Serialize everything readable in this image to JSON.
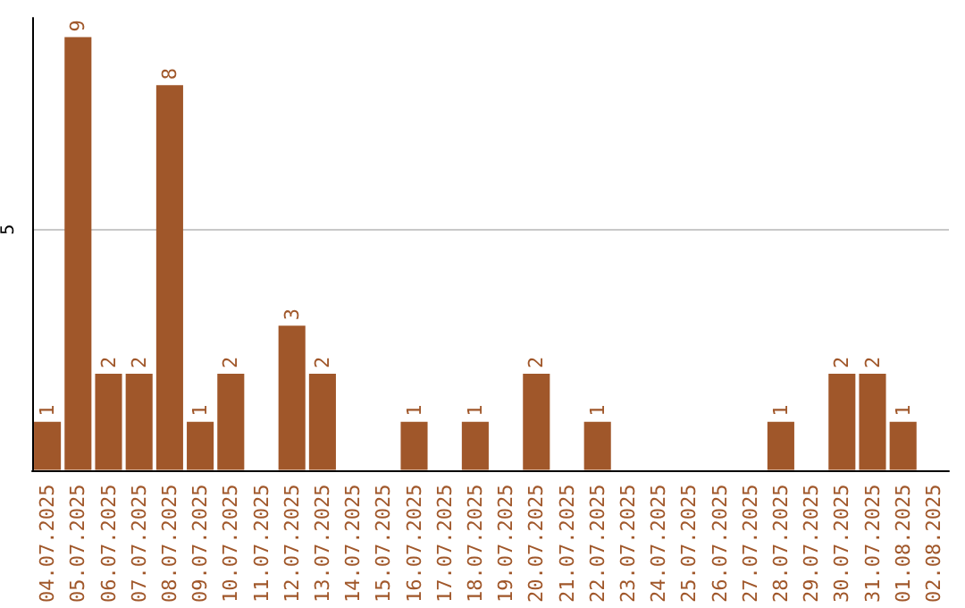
{
  "chart_data": {
    "type": "bar",
    "categories": [
      "04.07.2025",
      "05.07.2025",
      "06.07.2025",
      "07.07.2025",
      "08.07.2025",
      "09.07.2025",
      "10.07.2025",
      "11.07.2025",
      "12.07.2025",
      "13.07.2025",
      "14.07.2025",
      "15.07.2025",
      "16.07.2025",
      "17.07.2025",
      "18.07.2025",
      "19.07.2025",
      "20.07.2025",
      "21.07.2025",
      "22.07.2025",
      "23.07.2025",
      "24.07.2025",
      "25.07.2025",
      "26.07.2025",
      "27.07.2025",
      "28.07.2025",
      "29.07.2025",
      "30.07.2025",
      "31.07.2025",
      "01.08.2025",
      "02.08.2025"
    ],
    "values": [
      1,
      9,
      2,
      2,
      8,
      1,
      2,
      null,
      3,
      2,
      null,
      null,
      1,
      null,
      1,
      null,
      2,
      null,
      1,
      null,
      null,
      null,
      null,
      null,
      1,
      null,
      2,
      2,
      1,
      null
    ],
    "color": "#a0572a",
    "ylim": [
      0,
      9.4
    ],
    "yticks": [
      5
    ],
    "grid": "y",
    "data_labels": true
  }
}
